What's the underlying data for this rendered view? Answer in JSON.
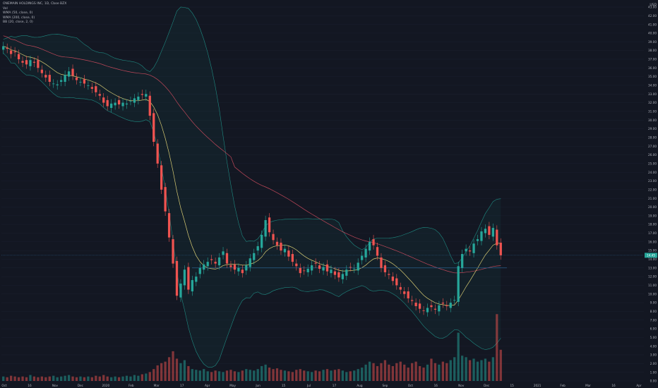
{
  "legend": {
    "title": "ONEMAIN HOLDINGS INC, 1D, Cboe BZX",
    "vol": "Vol",
    "wma50": "WMA (50, close, 0)",
    "wma200": "WMA (200, close, 0)",
    "bb": "BB (20, close, 2, 0)"
  },
  "currency": "USD",
  "last_price_label": "14.45",
  "colors": {
    "background": "#131722",
    "up": "#26a69a",
    "down": "#ef5350",
    "wma50": "#d9cc73",
    "wma200": "#c0485a",
    "bb_band": "#1f8a82",
    "grid": "#1c2030",
    "axis_text": "#b2b5be",
    "price_line": "#2a5f8f"
  },
  "chart_data": {
    "type": "candlestick",
    "title": "ONEMAIN HOLDINGS INC, 1D, Cboe BZX",
    "y_ticks": [
      "43.00",
      "42.00",
      "41.00",
      "40.00",
      "39.00",
      "38.00",
      "37.00",
      "36.00",
      "35.00",
      "34.00",
      "33.00",
      "32.00",
      "31.00",
      "30.00",
      "29.00",
      "28.00",
      "27.00",
      "26.00",
      "25.00",
      "24.00",
      "23.00",
      "22.00",
      "21.00",
      "20.00",
      "19.00",
      "18.00",
      "17.00",
      "16.00",
      "15.00",
      "14.00",
      "13.00",
      "12.00",
      "11.00",
      "10.00",
      "9.00",
      "8.00",
      "7.00",
      "6.00",
      "5.00",
      "4.00",
      "3.00",
      "2.00",
      "1.00",
      "0.00"
    ],
    "x_ticks": [
      "Oct",
      "16",
      "Nov",
      "Dec",
      "2020",
      "Feb",
      "Mar",
      "17",
      "Apr",
      "May",
      "Jun",
      "15",
      "Jul",
      "17",
      "Aug",
      "Sep",
      "Oct",
      "16",
      "Nov",
      "Dec",
      "15",
      "2021",
      "Feb",
      "Mar",
      "16",
      "Apr"
    ],
    "ylim": [
      0,
      43
    ],
    "last_price": 14.45,
    "support_level": 13.0,
    "series_close": [
      38.5,
      38.2,
      37.6,
      37.8,
      37.0,
      36.6,
      36.4,
      36.9,
      36.6,
      36.0,
      35.4,
      34.9,
      34.4,
      34.2,
      34.1,
      34.6,
      35.2,
      35.6,
      35.1,
      34.6,
      34.4,
      34.2,
      34.0,
      33.6,
      33.2,
      32.8,
      32.0,
      31.6,
      31.9,
      32.0,
      31.8,
      32.0,
      31.9,
      32.2,
      32.5,
      32.7,
      32.9,
      33.0,
      30.5,
      27.5,
      25.0,
      22.0,
      19.5,
      16.5,
      13.5,
      9.8,
      11.2,
      12.8,
      10.5,
      11.6,
      12.0,
      13.0,
      13.4,
      13.7,
      13.9,
      13.5,
      14.2,
      14.9,
      13.5,
      13.1,
      12.8,
      13.0,
      12.4,
      13.3,
      14.1,
      14.7,
      15.5,
      16.8,
      18.5,
      17.1,
      16.2,
      15.6,
      15.0,
      15.2,
      14.3,
      13.7,
      13.2,
      12.4,
      12.7,
      12.9,
      13.3,
      13.5,
      12.9,
      13.1,
      12.6,
      12.8,
      12.2,
      11.9,
      12.3,
      12.8,
      13.1,
      12.9,
      13.6,
      14.4,
      15.2,
      16.0,
      15.6,
      14.4,
      13.0,
      12.5,
      12.2,
      11.5,
      11.0,
      10.5,
      10.0,
      9.5,
      9.2,
      8.6,
      8.3,
      8.1,
      8.4,
      8.5,
      8.2,
      8.7,
      8.9,
      8.6,
      9.0,
      9.3,
      13.2,
      14.6,
      15.2,
      14.9,
      15.8,
      16.3,
      17.2,
      17.5,
      16.8,
      17.6,
      15.6,
      14.45
    ],
    "volume": [
      0.6,
      0.5,
      0.7,
      0.6,
      0.5,
      0.6,
      0.5,
      0.8,
      0.6,
      0.5,
      0.6,
      0.5,
      0.6,
      0.7,
      0.5,
      0.6,
      0.7,
      0.8,
      0.6,
      0.5,
      0.6,
      0.5,
      0.6,
      0.5,
      0.7,
      0.6,
      0.8,
      0.6,
      0.5,
      0.6,
      0.5,
      0.6,
      0.7,
      0.6,
      0.8,
      0.7,
      0.9,
      1.0,
      1.2,
      1.6,
      2.1,
      2.4,
      2.6,
      3.2,
      4.0,
      3.0,
      2.4,
      2.8,
      2.0,
      1.6,
      1.5,
      1.4,
      1.6,
      1.3,
      1.2,
      1.4,
      1.3,
      1.2,
      1.4,
      1.5,
      1.3,
      1.2,
      1.4,
      1.6,
      1.5,
      1.4,
      1.6,
      2.0,
      2.2,
      1.8,
      1.6,
      1.7,
      1.5,
      1.4,
      1.3,
      1.2,
      1.5,
      1.6,
      1.4,
      1.3,
      1.2,
      1.4,
      1.3,
      1.5,
      1.6,
      1.4,
      1.5,
      1.6,
      1.4,
      1.2,
      1.3,
      1.4,
      1.6,
      1.8,
      2.2,
      2.6,
      2.4,
      2.0,
      2.4,
      2.8,
      2.2,
      2.0,
      2.4,
      2.6,
      2.2,
      1.8,
      2.4,
      2.6,
      2.0,
      1.8,
      2.2,
      3.0,
      2.4,
      2.2,
      2.6,
      2.4,
      2.8,
      3.2,
      6.5,
      3.4,
      3.2,
      2.8,
      3.0,
      2.6,
      2.8,
      3.0,
      2.6,
      3.2,
      9.0,
      4.2
    ],
    "x_ticks_count": 26
  }
}
